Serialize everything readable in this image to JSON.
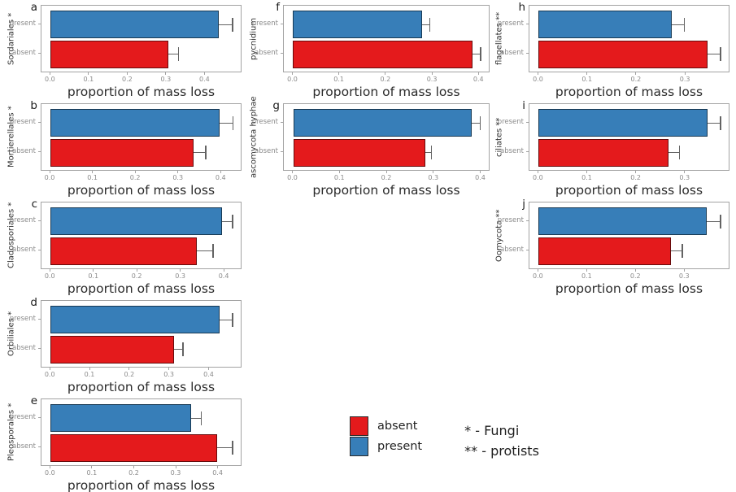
{
  "figure": {
    "background": "#ffffff",
    "colors": {
      "present": "#377eb8",
      "absent": "#e41a1c",
      "panel_border": "#a3a3a3",
      "errorbar": "#636363",
      "tick_text": "#8a8a8a",
      "axis_text": "#2b2b2b"
    },
    "legend": {
      "items": [
        {
          "label": "absent",
          "color_key": "absent"
        },
        {
          "label": "present",
          "color_key": "present"
        }
      ],
      "notes": [
        "* - Fungi",
        "** - protists"
      ]
    }
  },
  "chart_data": {
    "type": "bar",
    "orientation": "horizontal",
    "xlabel": "proportion of mass loss",
    "categories": [
      "present",
      "absent"
    ],
    "grid": false,
    "panels": [
      {
        "letter": "a",
        "y_title": "Sordariales *",
        "col": 0,
        "row": 0,
        "xticks": [
          0,
          0.1,
          0.2,
          0.3,
          0.4
        ],
        "xlim": [
          -0.024,
          0.496
        ],
        "bars": [
          {
            "category": "present",
            "value": 0.435,
            "upper": 0.472
          },
          {
            "category": "absent",
            "value": 0.305,
            "upper": 0.332
          }
        ]
      },
      {
        "letter": "b",
        "y_title": "Mortierellales *",
        "col": 0,
        "row": 1,
        "xticks": [
          0,
          0.1,
          0.2,
          0.3,
          0.4
        ],
        "xlim": [
          -0.021,
          0.449
        ],
        "bars": [
          {
            "category": "present",
            "value": 0.395,
            "upper": 0.428
          },
          {
            "category": "absent",
            "value": 0.335,
            "upper": 0.365
          }
        ]
      },
      {
        "letter": "c",
        "y_title": "Cladosporiales *",
        "col": 0,
        "row": 2,
        "xticks": [
          0,
          0.1,
          0.2,
          0.3,
          0.4
        ],
        "xlim": [
          -0.021,
          0.441
        ],
        "bars": [
          {
            "category": "present",
            "value": 0.395,
            "upper": 0.42
          },
          {
            "category": "absent",
            "value": 0.337,
            "upper": 0.375
          }
        ]
      },
      {
        "letter": "d",
        "y_title": "Orbiliales *",
        "col": 0,
        "row": 3,
        "xticks": [
          0,
          0.1,
          0.2,
          0.3,
          0.4
        ],
        "xlim": [
          -0.023,
          0.483
        ],
        "bars": [
          {
            "category": "present",
            "value": 0.425,
            "upper": 0.46
          },
          {
            "category": "absent",
            "value": 0.31,
            "upper": 0.335
          }
        ]
      },
      {
        "letter": "e",
        "y_title": "Pleosporales *",
        "col": 0,
        "row": 4,
        "xticks": [
          0,
          0.1,
          0.2,
          0.3,
          0.4
        ],
        "xlim": [
          -0.022,
          0.457
        ],
        "bars": [
          {
            "category": "present",
            "value": 0.335,
            "upper": 0.36
          },
          {
            "category": "absent",
            "value": 0.397,
            "upper": 0.435
          }
        ]
      },
      {
        "letter": "f",
        "y_title": "pycnidium",
        "col": 1,
        "row": 0,
        "xticks": [
          0,
          0.1,
          0.2,
          0.3,
          0.4
        ],
        "xlim": [
          -0.02,
          0.424
        ],
        "bars": [
          {
            "category": "present",
            "value": 0.277,
            "upper": 0.295
          },
          {
            "category": "absent",
            "value": 0.386,
            "upper": 0.404
          }
        ]
      },
      {
        "letter": "g",
        "y_title": "ascomycota hyphae",
        "col": 1,
        "row": 1,
        "xticks": [
          0,
          0.1,
          0.2,
          0.3,
          0.4
        ],
        "xlim": [
          -0.02,
          0.42
        ],
        "bars": [
          {
            "category": "present",
            "value": 0.38,
            "upper": 0.4
          },
          {
            "category": "absent",
            "value": 0.282,
            "upper": 0.296
          }
        ]
      },
      {
        "letter": "h",
        "y_title": "flagellates **",
        "col": 2,
        "row": 0,
        "xticks": [
          0,
          0.1,
          0.2,
          0.3
        ],
        "xlim": [
          -0.019,
          0.391
        ],
        "bars": [
          {
            "category": "present",
            "value": 0.272,
            "upper": 0.298
          },
          {
            "category": "absent",
            "value": 0.345,
            "upper": 0.372
          }
        ]
      },
      {
        "letter": "i",
        "y_title": "ciliates **",
        "col": 2,
        "row": 1,
        "xticks": [
          0,
          0.1,
          0.2,
          0.3
        ],
        "xlim": [
          -0.019,
          0.392
        ],
        "bars": [
          {
            "category": "present",
            "value": 0.345,
            "upper": 0.373
          },
          {
            "category": "absent",
            "value": 0.265,
            "upper": 0.289
          }
        ]
      },
      {
        "letter": "j",
        "y_title": "Oomycota **",
        "col": 2,
        "row": 2,
        "xticks": [
          0,
          0.1,
          0.2,
          0.3
        ],
        "xlim": [
          -0.019,
          0.393
        ],
        "bars": [
          {
            "category": "present",
            "value": 0.345,
            "upper": 0.374
          },
          {
            "category": "absent",
            "value": 0.271,
            "upper": 0.296
          }
        ]
      }
    ]
  }
}
